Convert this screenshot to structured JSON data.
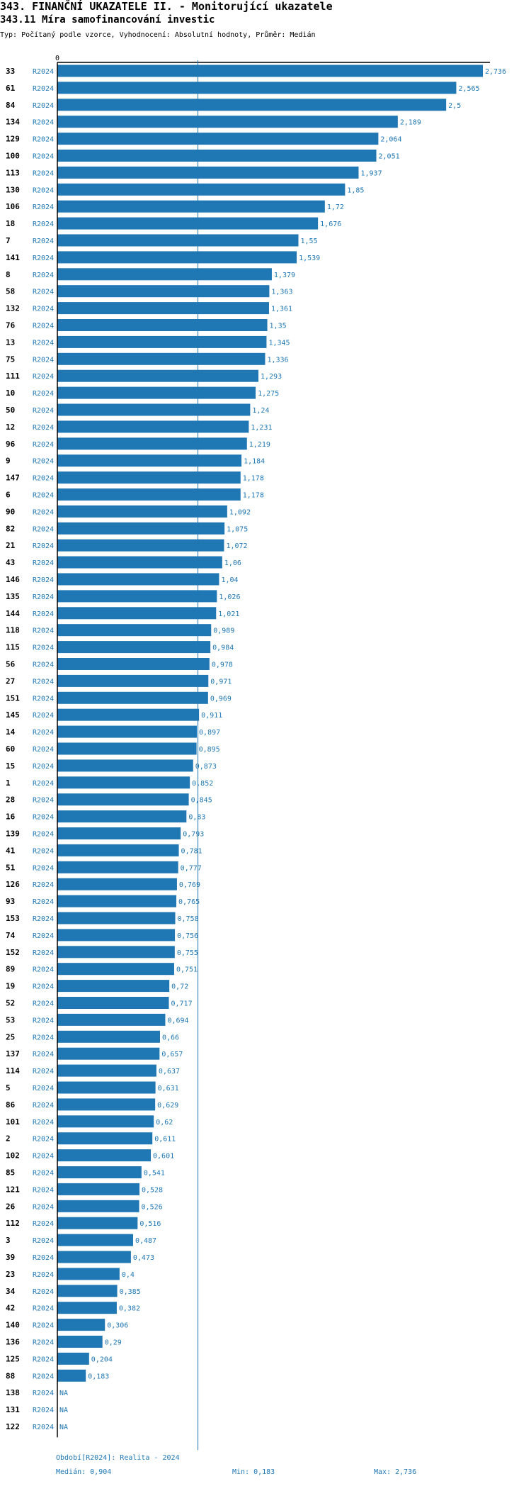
{
  "header": {
    "title": "343. FINANČNÍ UKAZATELE II. - Monitorující ukazatele",
    "subtitle": "343.11 Míra samofinancování investic",
    "meta": "Typ: Počítaný podle vzorce, Vyhodnocení: Absolutní hodnoty, Průměr: Medián"
  },
  "footer": {
    "period": "Období[R2024]: Realita - 2024",
    "median": "Medián: 0,904",
    "min": "Min: 0,183",
    "max": "Max: 2,736"
  },
  "colors": {
    "bar": "#1f77b4",
    "text_accent": "#1f77b4",
    "axis": "#000000"
  },
  "chart_data": {
    "type": "bar",
    "orientation": "horizontal",
    "x_tick_labels": [
      "0"
    ],
    "xlim": [
      0,
      2.736
    ],
    "median": 0.904,
    "period_label": "R2024",
    "categories": [
      "33",
      "61",
      "84",
      "134",
      "129",
      "100",
      "113",
      "130",
      "106",
      "18",
      "7",
      "141",
      "8",
      "58",
      "132",
      "76",
      "13",
      "75",
      "111",
      "10",
      "50",
      "12",
      "96",
      "9",
      "147",
      "6",
      "90",
      "82",
      "21",
      "43",
      "146",
      "135",
      "144",
      "118",
      "115",
      "56",
      "27",
      "151",
      "145",
      "14",
      "60",
      "15",
      "1",
      "28",
      "16",
      "139",
      "41",
      "51",
      "126",
      "93",
      "153",
      "74",
      "152",
      "89",
      "19",
      "52",
      "53",
      "25",
      "137",
      "114",
      "5",
      "86",
      "101",
      "2",
      "102",
      "85",
      "121",
      "26",
      "112",
      "3",
      "39",
      "23",
      "34",
      "42",
      "140",
      "136",
      "125",
      "88",
      "138",
      "131",
      "122"
    ],
    "values": [
      2.736,
      2.565,
      2.5,
      2.189,
      2.064,
      2.051,
      1.937,
      1.85,
      1.72,
      1.676,
      1.55,
      1.539,
      1.379,
      1.363,
      1.361,
      1.35,
      1.345,
      1.336,
      1.293,
      1.275,
      1.24,
      1.231,
      1.219,
      1.184,
      1.178,
      1.178,
      1.092,
      1.075,
      1.072,
      1.06,
      1.04,
      1.026,
      1.021,
      0.989,
      0.984,
      0.978,
      0.971,
      0.969,
      0.911,
      0.897,
      0.895,
      0.873,
      0.852,
      0.845,
      0.83,
      0.793,
      0.781,
      0.777,
      0.769,
      0.765,
      0.758,
      0.756,
      0.755,
      0.751,
      0.72,
      0.717,
      0.694,
      0.66,
      0.657,
      0.637,
      0.631,
      0.629,
      0.62,
      0.611,
      0.601,
      0.541,
      0.528,
      0.526,
      0.516,
      0.487,
      0.473,
      0.4,
      0.385,
      0.382,
      0.306,
      0.29,
      0.204,
      0.183,
      null,
      null,
      null
    ],
    "value_labels": [
      "2,736",
      "2,565",
      "2,5",
      "2,189",
      "2,064",
      "2,051",
      "1,937",
      "1,85",
      "1,72",
      "1,676",
      "1,55",
      "1,539",
      "1,379",
      "1,363",
      "1,361",
      "1,35",
      "1,345",
      "1,336",
      "1,293",
      "1,275",
      "1,24",
      "1,231",
      "1,219",
      "1,184",
      "1,178",
      "1,178",
      "1,092",
      "1,075",
      "1,072",
      "1,06",
      "1,04",
      "1,026",
      "1,021",
      "0,989",
      "0,984",
      "0,978",
      "0,971",
      "0,969",
      "0,911",
      "0,897",
      "0,895",
      "0,873",
      "0,852",
      "0,845",
      "0,83",
      "0,793",
      "0,781",
      "0,777",
      "0,769",
      "0,765",
      "0,758",
      "0,756",
      "0,755",
      "0,751",
      "0,72",
      "0,717",
      "0,694",
      "0,66",
      "0,657",
      "0,637",
      "0,631",
      "0,629",
      "0,62",
      "0,611",
      "0,601",
      "0,541",
      "0,528",
      "0,526",
      "0,516",
      "0,487",
      "0,473",
      "0,4",
      "0,385",
      "0,382",
      "0,306",
      "0,29",
      "0,204",
      "0,183",
      "NA",
      "NA",
      "NA"
    ]
  }
}
